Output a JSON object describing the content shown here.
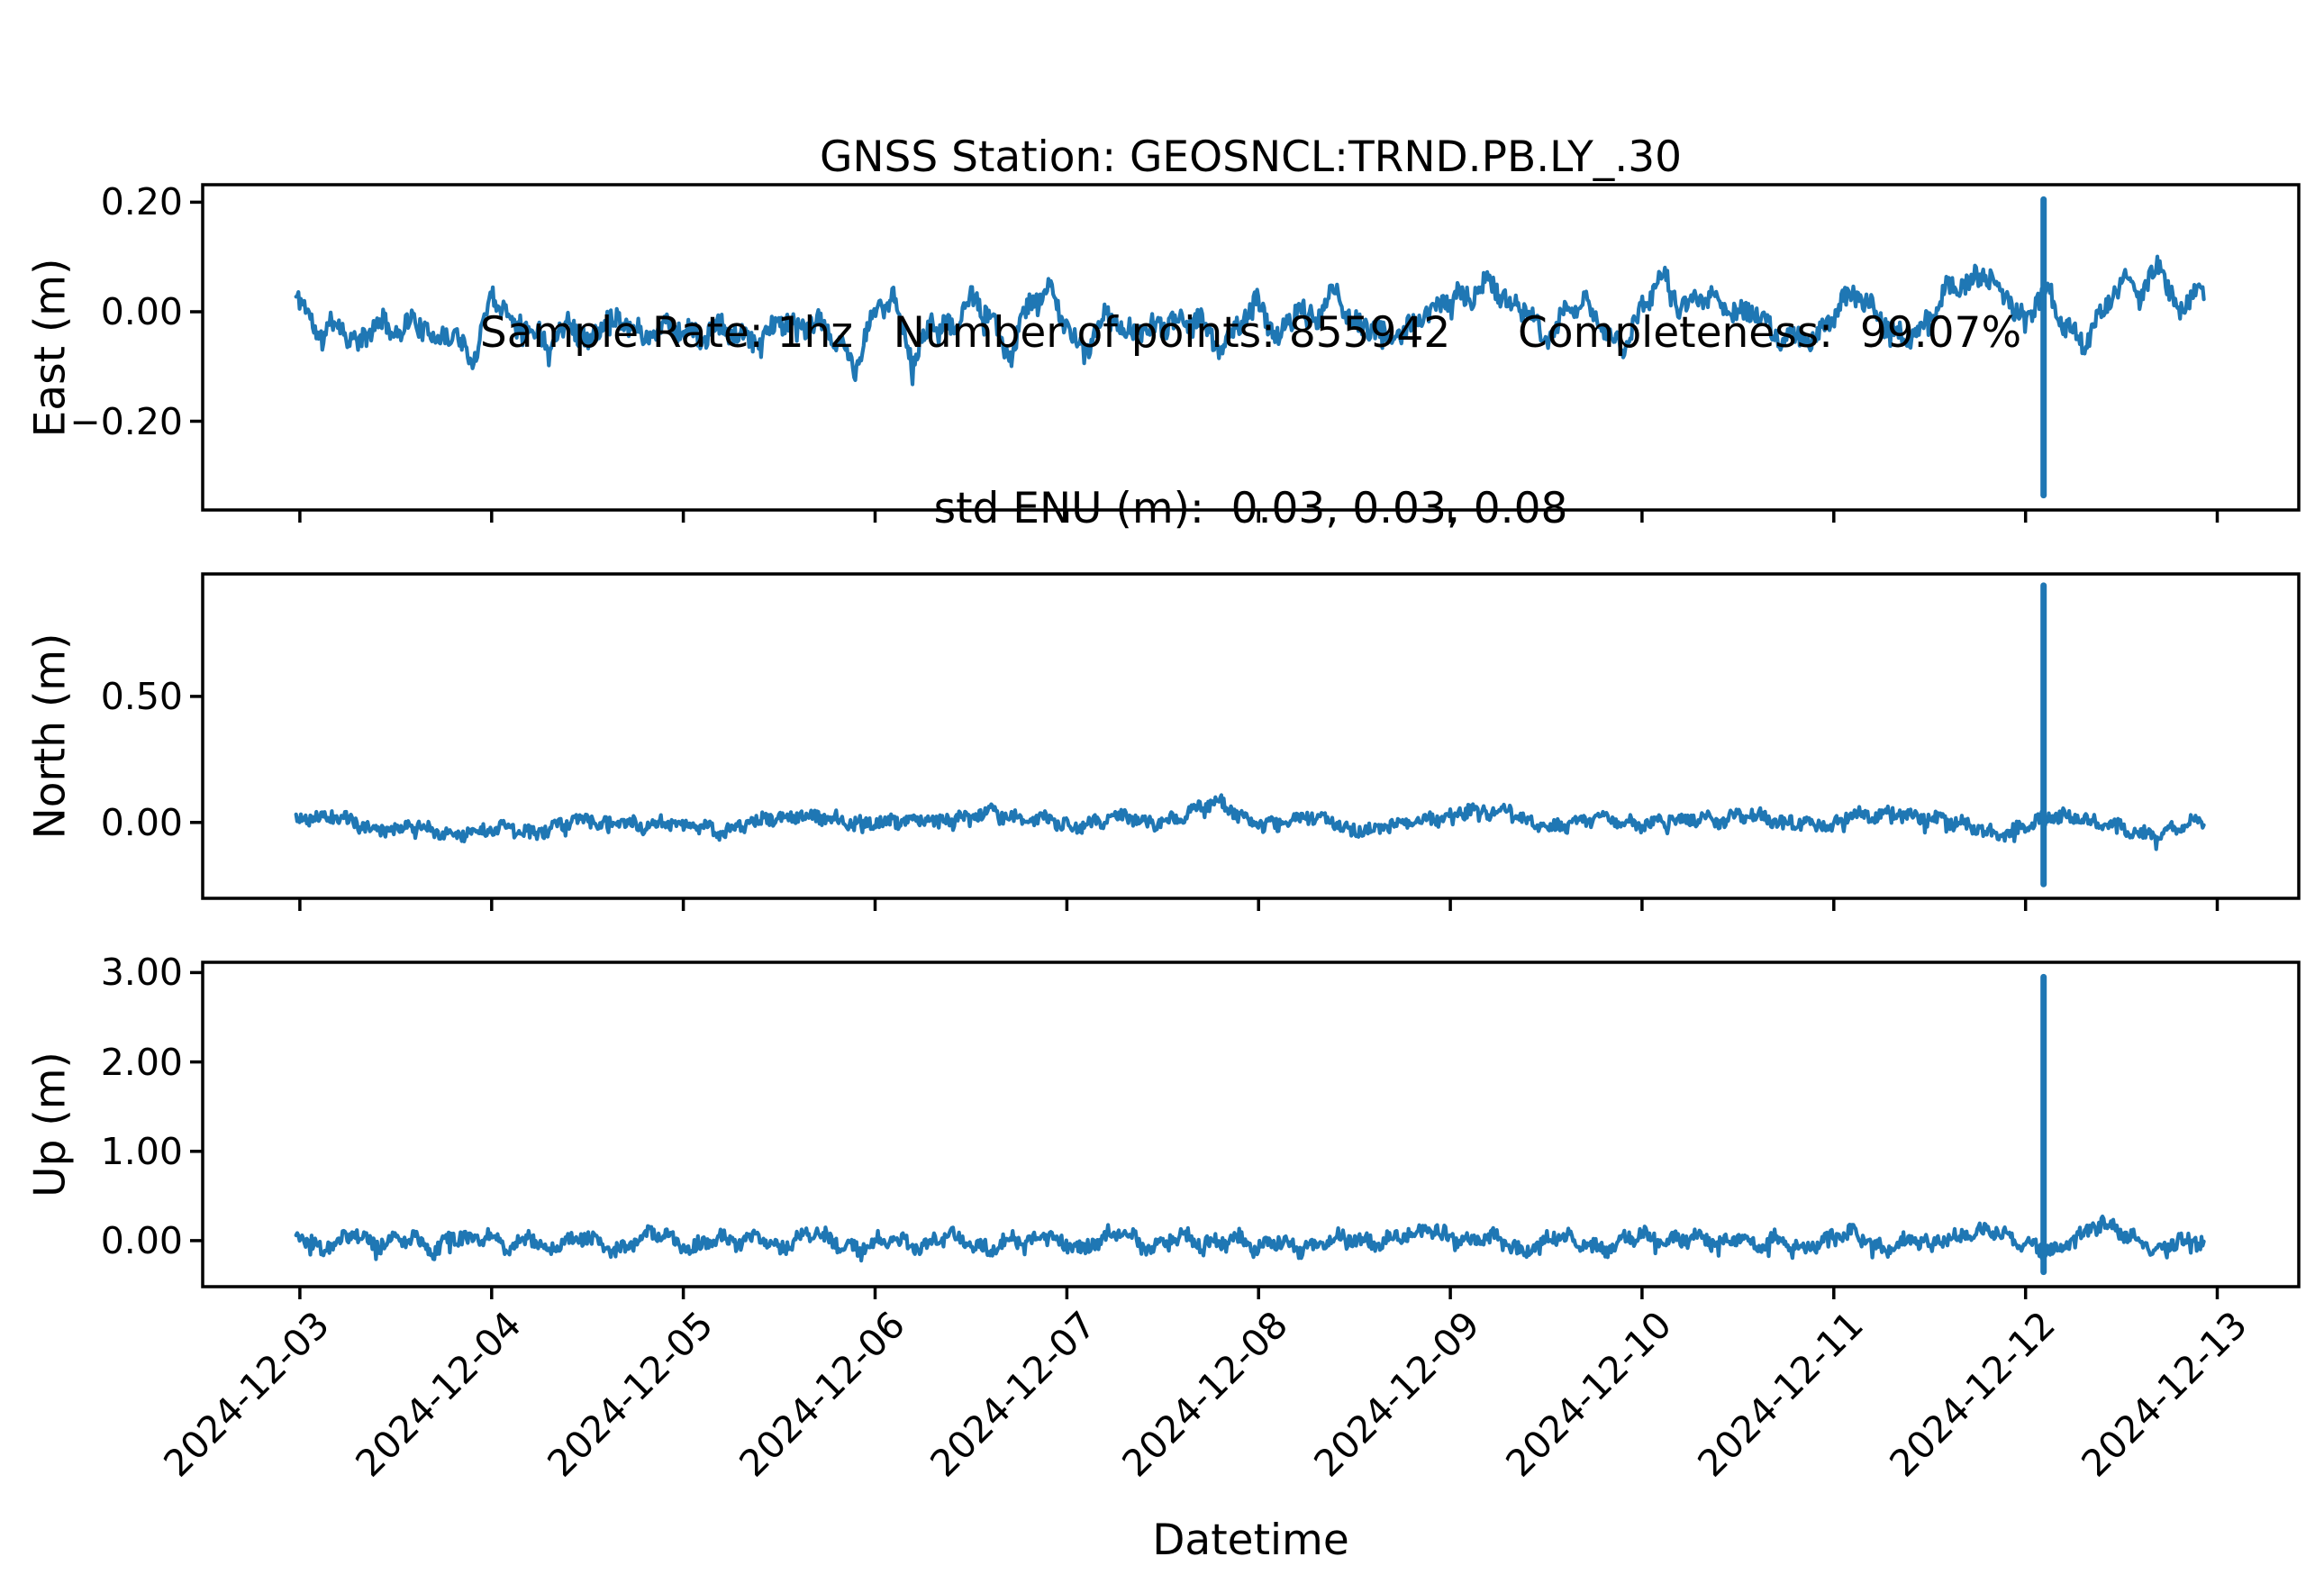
{
  "title": {
    "line1": "GNSS Station: GEOSNCL:TRND.PB.LY_.30",
    "line2": "Sample Rate: 1hz   Number of points: 855942     Completeness:  99.07%",
    "line3": "std ENU (m):  0.03, 0.03, 0.08"
  },
  "station_info": {
    "station": "GEOSNCL:TRND.PB.LY_.30",
    "sample_rate": "1hz",
    "number_of_points": 855942,
    "completeness_percent": 99.07,
    "std_enu_m": [
      0.03,
      0.03,
      0.08
    ]
  },
  "style": {
    "line_color": "#1f77b4",
    "axis_color": "#000000",
    "background": "#ffffff"
  },
  "chart_data": {
    "type": "line",
    "x_axis": {
      "label": "Datetime",
      "unit": "days since 2024-12-03T00:00",
      "lim": [
        -0.507,
        10.425
      ],
      "tick_days": [
        0,
        1,
        2,
        3,
        4,
        5,
        6,
        7,
        8,
        9,
        10
      ],
      "tick_labels": [
        "2024-12-03",
        "2024-12-04",
        "2024-12-05",
        "2024-12-06",
        "2024-12-07",
        "2024-12-08",
        "2024-12-09",
        "2024-12-10",
        "2024-12-11",
        "2024-12-12",
        "2024-12-13"
      ]
    },
    "data_span_days": [
      -0.02,
      9.93
    ],
    "series": [
      {
        "name": "East (m)",
        "ylim": [
          -0.362,
          0.232
        ],
        "ytick_values": [
          0.2,
          0.0,
          -0.2
        ],
        "ytick_labels": [
          "0.20",
          "0.00",
          "−0.20"
        ],
        "noise_halfwidth_m": 0.018,
        "spike": {
          "x_day": 9.094,
          "max_m": 0.205,
          "min_m": -0.335
        },
        "trend_x_day": [
          -0.02,
          0.1,
          0.2,
          0.3,
          0.4,
          0.5,
          0.6,
          0.7,
          0.8,
          0.9,
          1.0,
          1.1,
          1.2,
          1.3,
          1.4,
          1.5,
          1.6,
          1.7,
          1.8,
          1.9,
          2.0,
          2.1,
          2.2,
          2.3,
          2.4,
          2.5,
          2.6,
          2.7,
          2.8,
          2.9,
          3.0,
          3.1,
          3.2,
          3.3,
          3.4,
          3.5,
          3.6,
          3.7,
          3.8,
          3.9,
          4.0,
          4.1,
          4.2,
          4.3,
          4.4,
          4.5,
          4.6,
          4.7,
          4.8,
          4.9,
          5.0,
          5.1,
          5.2,
          5.3,
          5.4,
          5.5,
          5.6,
          5.7,
          5.8,
          5.9,
          6.0,
          6.1,
          6.2,
          6.3,
          6.4,
          6.5,
          6.6,
          6.7,
          6.8,
          6.9,
          7.0,
          7.1,
          7.2,
          7.3,
          7.4,
          7.5,
          7.6,
          7.7,
          7.8,
          7.9,
          8.0,
          8.1,
          8.2,
          8.3,
          8.4,
          8.5,
          8.6,
          8.7,
          8.8,
          8.9,
          9.0,
          9.1,
          9.2,
          9.3,
          9.4,
          9.5,
          9.6,
          9.7,
          9.8,
          9.9,
          9.93
        ],
        "trend_y_m": [
          0.035,
          -0.05,
          -0.02,
          -0.06,
          -0.01,
          -0.04,
          -0.02,
          -0.05,
          -0.03,
          -0.09,
          0.03,
          -0.01,
          -0.03,
          -0.05,
          -0.01,
          -0.065,
          -0.02,
          -0.01,
          -0.045,
          -0.02,
          -0.04,
          -0.05,
          -0.02,
          -0.045,
          -0.055,
          -0.02,
          -0.03,
          -0.015,
          -0.05,
          -0.11,
          0.0,
          0.03,
          -0.09,
          -0.01,
          -0.04,
          0.02,
          -0.005,
          -0.08,
          0.01,
          0.04,
          -0.03,
          -0.07,
          0.0,
          -0.04,
          -0.04,
          -0.025,
          -0.005,
          -0.015,
          -0.075,
          -0.02,
          0.02,
          -0.045,
          0.005,
          -0.02,
          0.035,
          -0.02,
          -0.025,
          -0.055,
          -0.03,
          0.0,
          0.035,
          0.03,
          0.055,
          0.01,
          0.005,
          -0.055,
          0.005,
          0.015,
          -0.04,
          -0.06,
          0.01,
          0.07,
          0.0,
          0.02,
          0.03,
          0.0,
          0.0,
          -0.055,
          -0.045,
          -0.05,
          0.005,
          0.03,
          0.0,
          -0.035,
          -0.04,
          -0.01,
          0.04,
          0.05,
          0.075,
          0.03,
          -0.02,
          0.04,
          -0.02,
          -0.055,
          0.0,
          0.055,
          0.02,
          0.09,
          0.0,
          0.055,
          0.03
        ]
      },
      {
        "name": "North (m)",
        "ylim": [
          -0.301,
          0.986
        ],
        "ytick_values": [
          0.5,
          0.0
        ],
        "ytick_labels": [
          "0.50",
          "0.00"
        ],
        "noise_halfwidth_m": 0.024,
        "spike": {
          "x_day": 9.094,
          "max_m": 0.94,
          "min_m": -0.245
        },
        "trend_x_day": [
          -0.02,
          0.1,
          0.2,
          0.3,
          0.4,
          0.5,
          0.6,
          0.7,
          0.8,
          0.9,
          1.0,
          1.1,
          1.2,
          1.3,
          1.4,
          1.5,
          1.6,
          1.7,
          1.8,
          1.9,
          2.0,
          2.1,
          2.2,
          2.3,
          2.4,
          2.5,
          2.6,
          2.7,
          2.8,
          2.9,
          3.0,
          3.1,
          3.2,
          3.3,
          3.4,
          3.5,
          3.6,
          3.7,
          3.8,
          3.9,
          4.0,
          4.1,
          4.2,
          4.3,
          4.4,
          4.5,
          4.6,
          4.7,
          4.8,
          4.9,
          5.0,
          5.1,
          5.2,
          5.3,
          5.4,
          5.5,
          5.6,
          5.7,
          5.8,
          5.9,
          6.0,
          6.1,
          6.2,
          6.3,
          6.4,
          6.5,
          6.6,
          6.7,
          6.8,
          6.9,
          7.0,
          7.1,
          7.2,
          7.3,
          7.4,
          7.5,
          7.6,
          7.7,
          7.8,
          7.9,
          8.0,
          8.1,
          8.2,
          8.3,
          8.4,
          8.5,
          8.6,
          8.7,
          8.8,
          8.9,
          9.0,
          9.1,
          9.2,
          9.3,
          9.4,
          9.5,
          9.6,
          9.7,
          9.8,
          9.9,
          9.93
        ],
        "trend_y_m": [
          0.0,
          0.02,
          0.03,
          0.0,
          -0.03,
          -0.04,
          -0.01,
          -0.03,
          -0.05,
          -0.03,
          -0.04,
          -0.02,
          -0.04,
          -0.02,
          0.0,
          0.01,
          -0.01,
          0.01,
          -0.02,
          0.0,
          -0.02,
          -0.01,
          -0.03,
          -0.01,
          0.0,
          0.02,
          0.04,
          0.03,
          0.01,
          -0.01,
          0.0,
          0.01,
          0.02,
          0.0,
          0.01,
          0.03,
          0.06,
          0.02,
          0.0,
          0.01,
          -0.01,
          0.0,
          0.01,
          0.02,
          0.0,
          0.01,
          0.03,
          0.06,
          0.07,
          0.03,
          0.0,
          -0.01,
          0.01,
          0.02,
          0.0,
          -0.02,
          -0.03,
          -0.01,
          0.0,
          0.02,
          0.03,
          0.05,
          0.03,
          0.05,
          0.01,
          -0.01,
          -0.02,
          0.0,
          0.02,
          0.01,
          -0.01,
          0.0,
          0.01,
          0.02,
          0.01,
          0.03,
          0.02,
          0.0,
          0.01,
          -0.01,
          0.0,
          0.02,
          0.03,
          0.05,
          0.03,
          0.01,
          0.0,
          -0.01,
          -0.03,
          -0.05,
          -0.02,
          0.01,
          0.03,
          0.02,
          -0.01,
          -0.03,
          -0.05,
          -0.04,
          -0.01,
          0.01,
          0.0
        ]
      },
      {
        "name": "Up (m)",
        "ylim": [
          -0.515,
          3.115
        ],
        "ytick_values": [
          3.0,
          2.0,
          1.0,
          0.0
        ],
        "ytick_labels": [
          "3.00",
          "2.00",
          "1.00",
          "0.00"
        ],
        "noise_halfwidth_m": 0.075,
        "spike": {
          "x_day": 9.094,
          "max_m": 2.95,
          "min_m": -0.35
        },
        "trend_x_day": [
          -0.02,
          0.1,
          0.2,
          0.3,
          0.4,
          0.5,
          0.6,
          0.7,
          0.8,
          0.9,
          1.0,
          1.1,
          1.2,
          1.3,
          1.4,
          1.5,
          1.6,
          1.7,
          1.8,
          1.9,
          2.0,
          2.1,
          2.2,
          2.3,
          2.4,
          2.5,
          2.6,
          2.7,
          2.8,
          2.9,
          3.0,
          3.1,
          3.2,
          3.3,
          3.4,
          3.5,
          3.6,
          3.7,
          3.8,
          3.9,
          4.0,
          4.1,
          4.2,
          4.3,
          4.4,
          4.5,
          4.6,
          4.7,
          4.8,
          4.9,
          5.0,
          5.1,
          5.2,
          5.3,
          5.4,
          5.5,
          5.6,
          5.7,
          5.8,
          5.9,
          6.0,
          6.1,
          6.2,
          6.3,
          6.4,
          6.5,
          6.6,
          6.7,
          6.8,
          6.9,
          7.0,
          7.1,
          7.2,
          7.3,
          7.4,
          7.5,
          7.6,
          7.7,
          7.8,
          7.9,
          8.0,
          8.1,
          8.2,
          8.3,
          8.4,
          8.5,
          8.6,
          8.7,
          8.8,
          8.9,
          9.0,
          9.1,
          9.2,
          9.3,
          9.4,
          9.5,
          9.6,
          9.7,
          9.8,
          9.9,
          9.93
        ],
        "trend_y_m": [
          0.05,
          -0.1,
          0.02,
          0.08,
          -0.08,
          0.0,
          0.03,
          -0.1,
          0.05,
          -0.02,
          0.06,
          -0.08,
          0.08,
          -0.1,
          -0.02,
          0.04,
          -0.06,
          -0.1,
          0.05,
          0.07,
          -0.08,
          -0.02,
          0.04,
          -0.06,
          0.02,
          -0.08,
          0.06,
          0.09,
          -0.06,
          -0.1,
          0.02,
          0.05,
          -0.08,
          -0.04,
          0.06,
          0.0,
          -0.09,
          0.03,
          -0.05,
          0.06,
          -0.02,
          -0.1,
          0.04,
          0.08,
          -0.04,
          0.0,
          0.06,
          -0.06,
          -0.02,
          0.05,
          -0.08,
          0.0,
          -0.12,
          -0.04,
          0.06,
          0.02,
          -0.06,
          0.04,
          0.1,
          0.14,
          0.04,
          -0.04,
          0.06,
          -0.02,
          -0.1,
          0.0,
          0.05,
          -0.05,
          -0.09,
          0.02,
          0.06,
          -0.03,
          0.02,
          0.08,
          -0.04,
          0.01,
          -0.08,
          0.04,
          -0.02,
          -0.06,
          0.03,
          0.08,
          -0.04,
          -0.08,
          0.02,
          -0.05,
          0.04,
          0.1,
          0.14,
          0.05,
          -0.06,
          -0.1,
          -0.05,
          0.08,
          0.18,
          0.1,
          -0.02,
          -0.08,
          0.0,
          -0.04,
          -0.02
        ]
      }
    ],
    "grid": false,
    "legend": false
  }
}
